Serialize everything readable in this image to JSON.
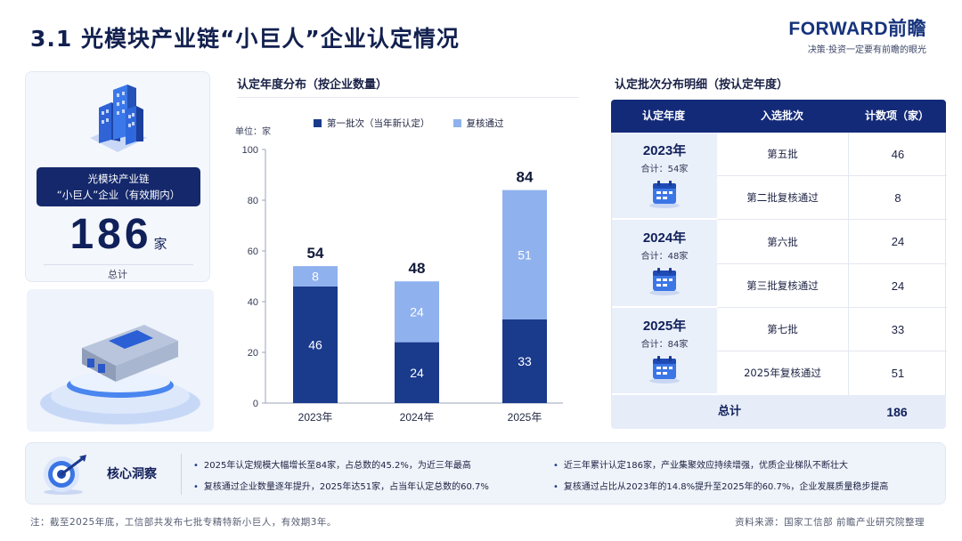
{
  "header": {
    "title": "3.1 光模块产业链“小巨人”企业认定情况",
    "brand_name": "FORWARD前瞻",
    "brand_slogan": "决策·投资一定要有前瞻的眼光"
  },
  "kpi": {
    "label_line1": "光模块产业链",
    "label_line2": "“小巨人”企业（有效期内）",
    "value": "186",
    "unit": "家",
    "caption": "总计"
  },
  "chart_section": {
    "title": "认定年度分布（按企业数量）",
    "unit_label": "单位：家"
  },
  "chart_data": {
    "type": "bar",
    "stacked": true,
    "categories": [
      "2023年",
      "2024年",
      "2025年"
    ],
    "series": [
      {
        "name": "第一批次（当年新认定）",
        "values": [
          46,
          24,
          33
        ],
        "color": "#1a3a8c"
      },
      {
        "name": "复核通过",
        "values": [
          8,
          24,
          51
        ],
        "color": "#8fb1ee"
      }
    ],
    "totals": [
      54,
      48,
      84
    ],
    "ylim": [
      0,
      100
    ],
    "yticks": [
      0,
      20,
      40,
      60,
      80,
      100
    ],
    "ylabel": "单位：家",
    "grid": false,
    "legend_position": "top"
  },
  "table_section": {
    "title": "认定批次分布明细（按认定年度）",
    "headers": [
      "认定年度",
      "入选批次",
      "计数项（家）"
    ],
    "groups": [
      {
        "year": "2023年",
        "subtotal": "合计：54家",
        "rows": [
          {
            "batch": "第五批",
            "count": "46"
          },
          {
            "batch": "第二批复核通过",
            "count": "8"
          }
        ]
      },
      {
        "year": "2024年",
        "subtotal": "合计：48家",
        "rows": [
          {
            "batch": "第六批",
            "count": "24"
          },
          {
            "batch": "第三批复核通过",
            "count": "24"
          }
        ]
      },
      {
        "year": "2025年",
        "subtotal": "合计：84家",
        "rows": [
          {
            "batch": "第七批",
            "count": "33"
          },
          {
            "batch": "2025年复核通过",
            "count": "51"
          }
        ]
      }
    ],
    "footer_label": "总计",
    "footer_value": "186"
  },
  "insight": {
    "title": "核心洞察",
    "items": [
      "2025年认定规模大幅增长至84家，占总数的45.2%，为近三年最高",
      "近三年累计认定186家，产业集聚效应持续增强，优质企业梯队不断壮大",
      "复核通过企业数量逐年提升，2025年达51家，占当年认定总数的60.7%",
      "复核通过占比从2023年的14.8%提升至2025年的60.7%，企业发展质量稳步提高"
    ]
  },
  "footer": {
    "note": "注：截至2025年底，工信部共发布七批专精特新小巨人，有效期3年。",
    "source": "资料来源：国家工信部 前瞻产业研究院整理"
  },
  "colors": {
    "primary": "#132a78",
    "dark_bar": "#1a3a8c",
    "light_bar": "#8fb1ee",
    "panel": "#f4f7fc"
  }
}
